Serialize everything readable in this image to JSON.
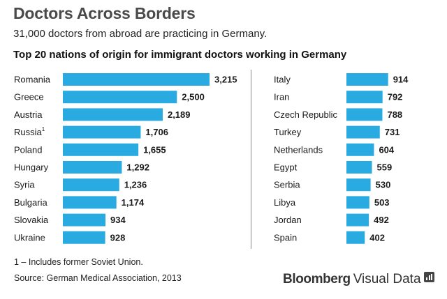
{
  "header": {
    "title": "Doctors Across Borders",
    "subtitle": "31,000 doctors from abroad are practicing in Germany.",
    "chart_heading": "Top 20 nations of origin for immigrant doctors working in Germany"
  },
  "footer": {
    "footnote": "1 – Includes former Soviet Union.",
    "source": "Source: German Medical Association, 2013",
    "brand_bold": "Bloomberg",
    "brand_light": "Visual Data"
  },
  "colors": {
    "bar": "#29abe2",
    "text": "#1a1a1a",
    "divider": "#888888"
  },
  "icons": [
    "bloomberg-visual-data-icon"
  ],
  "chart_data": {
    "type": "bar",
    "orientation": "horizontal",
    "title": "Top 20 nations of origin for immigrant doctors working in Germany",
    "grid": false,
    "panels": [
      {
        "categories": [
          "Romania",
          "Greece",
          "Austria",
          "Russia",
          "Poland",
          "Hungary",
          "Syria",
          "Bulgaria",
          "Slovakia",
          "Ukraine"
        ],
        "superscripts": [
          "",
          "",
          "",
          "1",
          "",
          "",
          "",
          "",
          "",
          ""
        ],
        "values": [
          3215,
          2500,
          2189,
          1706,
          1655,
          1292,
          1236,
          1174,
          934,
          928
        ],
        "value_labels": [
          "3,215",
          "2,500",
          "2,189",
          "1,706",
          "1,655",
          "1,292",
          "1,236",
          "1,174",
          "934",
          "928"
        ]
      },
      {
        "categories": [
          "Italy",
          "Iran",
          "Czech Republic",
          "Turkey",
          "Netherlands",
          "Egypt",
          "Serbia",
          "Libya",
          "Jordan",
          "Spain"
        ],
        "superscripts": [
          "",
          "",
          "",
          "",
          "",
          "",
          "",
          "",
          "",
          ""
        ],
        "values": [
          914,
          792,
          788,
          731,
          604,
          559,
          530,
          503,
          492,
          402
        ],
        "value_labels": [
          "914",
          "792",
          "788",
          "731",
          "604",
          "559",
          "530",
          "503",
          "492",
          "402"
        ]
      }
    ]
  }
}
